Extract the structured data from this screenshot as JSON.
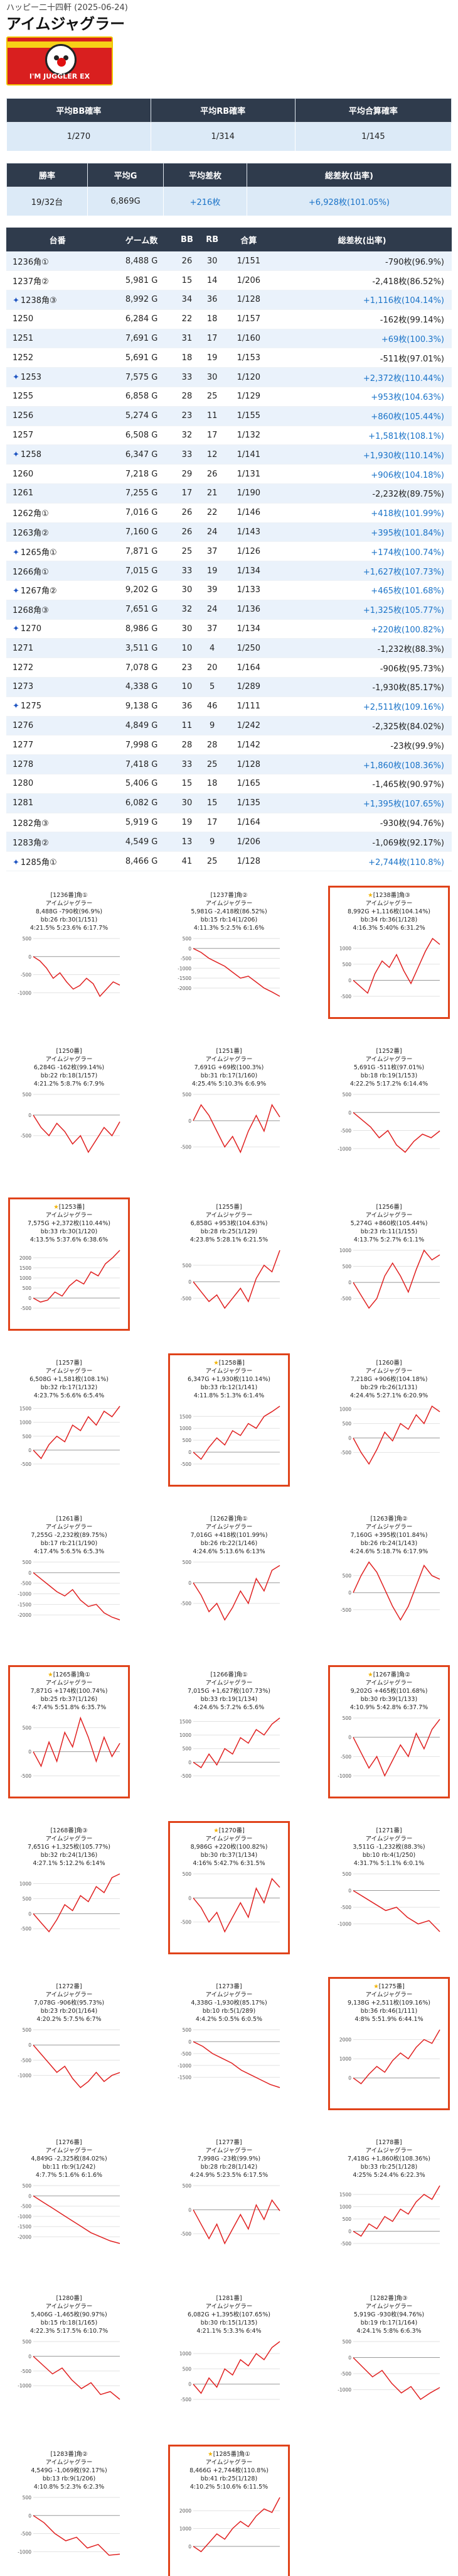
{
  "store": "ハッピー二十四軒 (2025-06-24)",
  "machine": "アイムジャグラー",
  "banner_text": "I'M JUGGLER EX",
  "summary1": {
    "headers": [
      "平均BB確率",
      "平均RB確率",
      "平均合算確率"
    ],
    "values": [
      "1/270",
      "1/314",
      "1/145"
    ]
  },
  "summary2": {
    "headers": [
      "勝率",
      "平均G",
      "平均差枚",
      "総差枚(出率)"
    ],
    "values": [
      "19/32台",
      "6,869G",
      "+216枚",
      "+6,928枚(101.05%)"
    ]
  },
  "units_header": [
    "台番",
    "ゲーム数",
    "BB",
    "RB",
    "合算",
    "総差枚(出率)"
  ],
  "units": [
    {
      "unit": "1236角①",
      "g": "8,488 G",
      "bb": "26",
      "rb": "30",
      "total": "1/151",
      "diff": "-790枚(96.9%)",
      "sp": false,
      "spark": [
        0,
        -120,
        -320,
        -600,
        -450,
        -700,
        -900,
        -800,
        -600,
        -750,
        -1100,
        -900,
        -700,
        -790
      ]
    },
    {
      "unit": "1237角②",
      "g": "5,981 G",
      "bb": "15",
      "rb": "14",
      "total": "1/206",
      "diff": "-2,418枚(86.52%)",
      "sp": false,
      "spark": [
        0,
        -200,
        -500,
        -700,
        -900,
        -1200,
        -1500,
        -1400,
        -1700,
        -2000,
        -2200,
        -2418
      ]
    },
    {
      "unit": "1238角③",
      "g": "8,992 G",
      "bb": "34",
      "rb": "36",
      "total": "1/128",
      "diff": "+1,116枚(104.14%)",
      "sp": true,
      "spark": [
        0,
        -200,
        -400,
        200,
        600,
        400,
        800,
        300,
        -100,
        400,
        900,
        1300,
        1116
      ]
    },
    {
      "unit": "1250",
      "g": "6,284 G",
      "bb": "22",
      "rb": "18",
      "total": "1/157",
      "diff": "-162枚(99.14%)",
      "sp": false,
      "spark": [
        0,
        -300,
        -500,
        -200,
        -400,
        -700,
        -500,
        -900,
        -600,
        -300,
        -500,
        -162
      ]
    },
    {
      "unit": "1251",
      "g": "7,691 G",
      "bb": "31",
      "rb": "17",
      "total": "1/160",
      "diff": "+69枚(100.3%)",
      "sp": false,
      "spark": [
        0,
        300,
        100,
        -200,
        -500,
        -300,
        -600,
        -200,
        100,
        -200,
        300,
        69
      ]
    },
    {
      "unit": "1252",
      "g": "5,691 G",
      "bb": "18",
      "rb": "19",
      "total": "1/153",
      "diff": "-511枚(97.01%)",
      "sp": false,
      "spark": [
        0,
        -200,
        -400,
        -700,
        -500,
        -900,
        -1100,
        -800,
        -600,
        -700,
        -511
      ]
    },
    {
      "unit": "1253",
      "g": "7,575 G",
      "bb": "33",
      "rb": "30",
      "total": "1/120",
      "diff": "+2,372枚(110.44%)",
      "sp": true,
      "spark": [
        0,
        -200,
        -100,
        300,
        100,
        600,
        900,
        700,
        1300,
        1100,
        1700,
        2000,
        2372
      ]
    },
    {
      "unit": "1255",
      "g": "6,858 G",
      "bb": "28",
      "rb": "25",
      "total": "1/129",
      "diff": "+953枚(104.63%)",
      "sp": false,
      "spark": [
        0,
        -300,
        -600,
        -400,
        -800,
        -500,
        -200,
        -600,
        100,
        500,
        300,
        953
      ]
    },
    {
      "unit": "1256",
      "g": "5,274 G",
      "bb": "23",
      "rb": "11",
      "total": "1/155",
      "diff": "+860枚(105.44%)",
      "sp": false,
      "spark": [
        0,
        -400,
        -800,
        -500,
        200,
        600,
        200,
        -300,
        400,
        1000,
        700,
        860
      ]
    },
    {
      "unit": "1257",
      "g": "6,508 G",
      "bb": "32",
      "rb": "17",
      "total": "1/132",
      "diff": "+1,581枚(108.1%)",
      "sp": false,
      "spark": [
        0,
        -300,
        200,
        500,
        300,
        900,
        700,
        1200,
        900,
        1400,
        1200,
        1581
      ]
    },
    {
      "unit": "1258",
      "g": "6,347 G",
      "bb": "33",
      "rb": "12",
      "total": "1/141",
      "diff": "+1,930枚(110.14%)",
      "sp": true,
      "spark": [
        0,
        -300,
        200,
        600,
        300,
        900,
        700,
        1200,
        1000,
        1500,
        1700,
        1930
      ]
    },
    {
      "unit": "1260",
      "g": "7,218 G",
      "bb": "29",
      "rb": "26",
      "total": "1/131",
      "diff": "+906枚(104.18%)",
      "sp": false,
      "spark": [
        0,
        -500,
        -900,
        -400,
        200,
        -100,
        500,
        300,
        800,
        500,
        1100,
        906
      ]
    },
    {
      "unit": "1261",
      "g": "7,255 G",
      "bb": "17",
      "rb": "21",
      "total": "1/190",
      "diff": "-2,232枚(89.75%)",
      "sp": false,
      "spark": [
        0,
        -300,
        -600,
        -900,
        -1100,
        -800,
        -1300,
        -1600,
        -1500,
        -1900,
        -2100,
        -2232
      ]
    },
    {
      "unit": "1262角①",
      "g": "7,016 G",
      "bb": "26",
      "rb": "22",
      "total": "1/146",
      "diff": "+418枚(101.99%)",
      "sp": false,
      "spark": [
        0,
        -300,
        -700,
        -500,
        -900,
        -600,
        -200,
        -500,
        100,
        -200,
        300,
        418
      ]
    },
    {
      "unit": "1263角②",
      "g": "7,160 G",
      "bb": "26",
      "rb": "24",
      "total": "1/143",
      "diff": "+395枚(101.84%)",
      "sp": false,
      "spark": [
        0,
        500,
        900,
        600,
        100,
        -400,
        -800,
        -400,
        200,
        800,
        500,
        395
      ]
    },
    {
      "unit": "1265角①",
      "g": "7,871 G",
      "bb": "25",
      "rb": "37",
      "total": "1/126",
      "diff": "+174枚(100.74%)",
      "sp": true,
      "spark": [
        0,
        -300,
        200,
        -200,
        400,
        100,
        700,
        300,
        -200,
        300,
        -100,
        174
      ]
    },
    {
      "unit": "1266角①",
      "g": "7,015 G",
      "bb": "33",
      "rb": "19",
      "total": "1/134",
      "diff": "+1,627枚(107.73%)",
      "sp": false,
      "spark": [
        0,
        -200,
        300,
        -100,
        500,
        300,
        900,
        700,
        1200,
        1000,
        1400,
        1627
      ]
    },
    {
      "unit": "1267角②",
      "g": "9,202 G",
      "bb": "30",
      "rb": "39",
      "total": "1/133",
      "diff": "+465枚(101.68%)",
      "sp": true,
      "spark": [
        0,
        -400,
        -800,
        -500,
        -1000,
        -600,
        -200,
        -500,
        100,
        -300,
        200,
        465
      ]
    },
    {
      "unit": "1268角③",
      "g": "7,651 G",
      "bb": "32",
      "rb": "24",
      "total": "1/136",
      "diff": "+1,325枚(105.77%)",
      "sp": false,
      "spark": [
        0,
        -300,
        -600,
        -200,
        300,
        100,
        600,
        400,
        900,
        700,
        1200,
        1325
      ]
    },
    {
      "unit": "1270",
      "g": "8,986 G",
      "bb": "30",
      "rb": "37",
      "total": "1/134",
      "diff": "+220枚(100.82%)",
      "sp": true,
      "spark": [
        0,
        -200,
        -500,
        -300,
        -700,
        -400,
        -100,
        -400,
        200,
        -100,
        400,
        220
      ]
    },
    {
      "unit": "1271",
      "g": "3,511 G",
      "bb": "10",
      "rb": "4",
      "total": "1/250",
      "diff": "-1,232枚(88.3%)",
      "sp": false,
      "spark": [
        0,
        -200,
        -400,
        -600,
        -500,
        -800,
        -1000,
        -900,
        -1232
      ]
    },
    {
      "unit": "1272",
      "g": "7,078 G",
      "bb": "23",
      "rb": "20",
      "total": "1/164",
      "diff": "-906枚(95.73%)",
      "sp": false,
      "spark": [
        0,
        -300,
        -600,
        -900,
        -700,
        -1100,
        -1400,
        -1200,
        -900,
        -1200,
        -1000,
        -906
      ]
    },
    {
      "unit": "1273",
      "g": "4,338 G",
      "bb": "10",
      "rb": "5",
      "total": "1/289",
      "diff": "-1,930枚(85.17%)",
      "sp": false,
      "spark": [
        0,
        -200,
        -500,
        -700,
        -900,
        -1200,
        -1400,
        -1600,
        -1800,
        -1930
      ]
    },
    {
      "unit": "1275",
      "g": "9,138 G",
      "bb": "36",
      "rb": "46",
      "total": "1/111",
      "diff": "+2,511枚(109.16%)",
      "sp": true,
      "spark": [
        0,
        -300,
        200,
        600,
        300,
        900,
        1300,
        1000,
        1600,
        2000,
        1800,
        2511
      ]
    },
    {
      "unit": "1276",
      "g": "4,849 G",
      "bb": "11",
      "rb": "9",
      "total": "1/242",
      "diff": "-2,325枚(84.02%)",
      "sp": false,
      "spark": [
        0,
        -300,
        -600,
        -900,
        -1200,
        -1500,
        -1800,
        -2000,
        -2200,
        -2325
      ]
    },
    {
      "unit": "1277",
      "g": "7,998 G",
      "bb": "28",
      "rb": "28",
      "total": "1/142",
      "diff": "-23枚(99.9%)",
      "sp": false,
      "spark": [
        0,
        -300,
        -600,
        -300,
        -700,
        -400,
        -100,
        -400,
        100,
        -200,
        200,
        -23
      ]
    },
    {
      "unit": "1278",
      "g": "7,418 G",
      "bb": "33",
      "rb": "25",
      "total": "1/128",
      "diff": "+1,860枚(108.36%)",
      "sp": false,
      "spark": [
        0,
        -200,
        300,
        100,
        600,
        400,
        900,
        700,
        1200,
        1500,
        1300,
        1860
      ]
    },
    {
      "unit": "1280",
      "g": "5,406 G",
      "bb": "15",
      "rb": "18",
      "total": "1/165",
      "diff": "-1,465枚(90.97%)",
      "sp": false,
      "spark": [
        0,
        -300,
        -600,
        -400,
        -800,
        -1100,
        -900,
        -1300,
        -1200,
        -1465
      ]
    },
    {
      "unit": "1281",
      "g": "6,082 G",
      "bb": "30",
      "rb": "15",
      "total": "1/135",
      "diff": "+1,395枚(107.65%)",
      "sp": false,
      "spark": [
        0,
        -300,
        200,
        -100,
        500,
        300,
        800,
        600,
        1000,
        800,
        1200,
        1395
      ]
    },
    {
      "unit": "1282角③",
      "g": "5,919 G",
      "bb": "19",
      "rb": "17",
      "total": "1/164",
      "diff": "-930枚(94.76%)",
      "sp": false,
      "spark": [
        0,
        -300,
        -600,
        -400,
        -800,
        -1100,
        -900,
        -1300,
        -1100,
        -930
      ]
    },
    {
      "unit": "1283角②",
      "g": "4,549 G",
      "bb": "13",
      "rb": "9",
      "total": "1/206",
      "diff": "-1,069枚(92.17%)",
      "sp": false,
      "spark": [
        0,
        -200,
        -500,
        -700,
        -600,
        -900,
        -800,
        -1100,
        -1069
      ]
    },
    {
      "unit": "1285角①",
      "g": "8,466 G",
      "bb": "41",
      "rb": "25",
      "total": "1/128",
      "diff": "+2,744枚(110.8%)",
      "sp": true,
      "spark": [
        0,
        -300,
        200,
        700,
        400,
        1000,
        1400,
        1100,
        1700,
        2100,
        1900,
        2744
      ]
    }
  ],
  "cards": [
    {
      "l1": "[1236番]角①",
      "l2": "アイムジャグラー",
      "l3": "8,488G -790枚(96.9%)",
      "l4": "bb:26 rb:30(1/151)",
      "l5": "4:21.5% 5:23.6% 6:17.7%",
      "hl": false,
      "star": false
    },
    {
      "l1": "[1237番]角②",
      "l2": "アイムジャグラー",
      "l3": "5,981G -2,418枚(86.52%)",
      "l4": "bb:15 rb:14(1/206)",
      "l5": "4:11.3% 5:2.5% 6:1.6%",
      "hl": false,
      "star": false
    },
    {
      "l1": "[1238番]角③",
      "l2": "アイムジャグラー",
      "l3": "8,992G +1,116枚(104.14%)",
      "l4": "bb:34 rb:36(1/128)",
      "l5": "4:16.3% 5:40% 6:31.2%",
      "hl": true,
      "star": true
    },
    {
      "l1": "[1250番]",
      "l2": "アイムジャグラー",
      "l3": "6,284G -162枚(99.14%)",
      "l4": "bb:22 rb:18(1/157)",
      "l5": "4:21.2% 5:8.7% 6:7.9%",
      "hl": false,
      "star": false
    },
    {
      "l1": "[1251番]",
      "l2": "アイムジャグラー",
      "l3": "7,691G +69枚(100.3%)",
      "l4": "bb:31 rb:17(1/160)",
      "l5": "4:25.4% 5:10.3% 6:6.9%",
      "hl": false,
      "star": false
    },
    {
      "l1": "[1252番]",
      "l2": "アイムジャグラー",
      "l3": "5,691G -511枚(97.01%)",
      "l4": "bb:18 rb:19(1/153)",
      "l5": "4:22.2% 5:17.2% 6:14.4%",
      "hl": false,
      "star": false
    },
    {
      "l1": "[1253番]",
      "l2": "アイムジャグラー",
      "l3": "7,575G +2,372枚(110.44%)",
      "l4": "bb:33 rb:30(1/120)",
      "l5": "4:13.5% 5:37.6% 6:38.6%",
      "hl": true,
      "star": true
    },
    {
      "l1": "[1255番]",
      "l2": "アイムジャグラー",
      "l3": "6,858G +953枚(104.63%)",
      "l4": "bb:28 rb:25(1/129)",
      "l5": "4:23.8% 5:28.1% 6:21.5%",
      "hl": false,
      "star": false
    },
    {
      "l1": "[1256番]",
      "l2": "アイムジャグラー",
      "l3": "5,274G +860枚(105.44%)",
      "l4": "bb:23 rb:11(1/155)",
      "l5": "4:13.7% 5:2.7% 6:1.1%",
      "hl": false,
      "star": false
    },
    {
      "l1": "[1257番]",
      "l2": "アイムジャグラー",
      "l3": "6,508G +1,581枚(108.1%)",
      "l4": "bb:32 rb:17(1/132)",
      "l5": "4:23.7% 5:6.6% 6:5.4%",
      "hl": false,
      "star": false
    },
    {
      "l1": "[1258番]",
      "l2": "アイムジャグラー",
      "l3": "6,347G +1,930枚(110.14%)",
      "l4": "bb:33 rb:12(1/141)",
      "l5": "4:11.8% 5:1.3% 6:1.4%",
      "hl": true,
      "star": true
    },
    {
      "l1": "[1260番]",
      "l2": "アイムジャグラー",
      "l3": "7,218G +906枚(104.18%)",
      "l4": "bb:29 rb:26(1/131)",
      "l5": "4:24.4% 5:27.1% 6:20.9%",
      "hl": false,
      "star": false
    },
    {
      "l1": "[1261番]",
      "l2": "アイムジャグラー",
      "l3": "7,255G -2,232枚(89.75%)",
      "l4": "bb:17 rb:21(1/190)",
      "l5": "4:17.4% 5:6.5% 6:5.3%",
      "hl": false,
      "star": false
    },
    {
      "l1": "[1262番]角①",
      "l2": "アイムジャグラー",
      "l3": "7,016G +418枚(101.99%)",
      "l4": "bb:26 rb:22(1/146)",
      "l5": "4:24.6% 5:13.6% 6:13%",
      "hl": false,
      "star": false
    },
    {
      "l1": "[1263番]角②",
      "l2": "アイムジャグラー",
      "l3": "7,160G +395枚(101.84%)",
      "l4": "bb:26 rb:24(1/143)",
      "l5": "4:24.6% 5:18.7% 6:17.9%",
      "hl": false,
      "star": false
    },
    {
      "l1": "[1265番]角①",
      "l2": "アイムジャグラー",
      "l3": "7,871G +174枚(100.74%)",
      "l4": "bb:25 rb:37(1/126)",
      "l5": "4:7.4% 5:51.8% 6:35.7%",
      "hl": true,
      "star": true
    },
    {
      "l1": "[1266番]角①",
      "l2": "アイムジャグラー",
      "l3": "7,015G +1,627枚(107.73%)",
      "l4": "bb:33 rb:19(1/134)",
      "l5": "4:24.6% 5:7.2% 6:5.6%",
      "hl": false,
      "star": false
    },
    {
      "l1": "[1267番]角②",
      "l2": "アイムジャグラー",
      "l3": "9,202G +465枚(101.68%)",
      "l4": "bb:30 rb:39(1/133)",
      "l5": "4:10.9% 5:42.8% 6:37.7%",
      "hl": true,
      "star": true
    },
    {
      "l1": "[1268番]角③",
      "l2": "アイムジャグラー",
      "l3": "7,651G +1,325枚(105.77%)",
      "l4": "bb:32 rb:24(1/136)",
      "l5": "4:27.1% 5:12.2% 6:14%",
      "hl": false,
      "star": false
    },
    {
      "l1": "[1270番]",
      "l2": "アイムジャグラー",
      "l3": "8,986G +220枚(100.82%)",
      "l4": "bb:30 rb:37(1/134)",
      "l5": "4:16% 5:42.7% 6:31.5%",
      "hl": true,
      "star": true
    },
    {
      "l1": "[1271番]",
      "l2": "アイムジャグラー",
      "l3": "3,511G -1,232枚(88.3%)",
      "l4": "bb:10 rb:4(1/250)",
      "l5": "4:31.7% 5:1.1% 6:0.1%",
      "hl": false,
      "star": false
    },
    {
      "l1": "[1272番]",
      "l2": "アイムジャグラー",
      "l3": "7,078G -906枚(95.73%)",
      "l4": "bb:23 rb:20(1/164)",
      "l5": "4:20.2% 5:7.5% 6:7%",
      "hl": false,
      "star": false
    },
    {
      "l1": "[1273番]",
      "l2": "アイムジャグラー",
      "l3": "4,338G -1,930枚(85.17%)",
      "l4": "bb:10 rb:5(1/289)",
      "l5": "4:4.2% 5:0.5% 6:0.5%",
      "hl": false,
      "star": false
    },
    {
      "l1": "[1275番]",
      "l2": "アイムジャグラー",
      "l3": "9,138G +2,511枚(109.16%)",
      "l4": "bb:36 rb:46(1/111)",
      "l5": "4:8% 5:51.9% 6:44.1%",
      "hl": true,
      "star": true
    },
    {
      "l1": "[1276番]",
      "l2": "アイムジャグラー",
      "l3": "4,849G -2,325枚(84.02%)",
      "l4": "bb:11 rb:9(1/242)",
      "l5": "4:7.7% 5:1.6% 6:1.6%",
      "hl": false,
      "star": false
    },
    {
      "l1": "[1277番]",
      "l2": "アイムジャグラー",
      "l3": "7,998G -23枚(99.9%)",
      "l4": "bb:28 rb:28(1/142)",
      "l5": "4:24.9% 5:23.5% 6:17.5%",
      "hl": false,
      "star": false
    },
    {
      "l1": "[1278番]",
      "l2": "アイムジャグラー",
      "l3": "7,418G +1,860枚(108.36%)",
      "l4": "bb:33 rb:25(1/128)",
      "l5": "4:25% 5:24.4% 6:22.3%",
      "hl": false,
      "star": false
    },
    {
      "l1": "[1280番]",
      "l2": "アイムジャグラー",
      "l3": "5,406G -1,465枚(90.97%)",
      "l4": "bb:15 rb:18(1/165)",
      "l5": "4:22.3% 5:17.5% 6:10.7%",
      "hl": false,
      "star": false
    },
    {
      "l1": "[1281番]",
      "l2": "アイムジャグラー",
      "l3": "6,082G +1,395枚(107.65%)",
      "l4": "bb:30 rb:15(1/135)",
      "l5": "4:21.1% 5:3.3% 6:4%",
      "hl": false,
      "star": false
    },
    {
      "l1": "[1282番]角③",
      "l2": "アイムジャグラー",
      "l3": "5,919G -930枚(94.76%)",
      "l4": "bb:19 rb:17(1/164)",
      "l5": "4:24.1% 5:8% 6:6.3%",
      "hl": false,
      "star": false
    },
    {
      "l1": "[1283番]角②",
      "l2": "アイムジャグラー",
      "l3": "4,549G -1,069枚(92.17%)",
      "l4": "bb:13 rb:9(1/206)",
      "l5": "4:10.8% 5:2.3% 6:2.3%",
      "hl": false,
      "star": false
    },
    {
      "l1": "[1285番]角①",
      "l2": "アイムジャグラー",
      "l3": "8,466G +2,744枚(110.8%)",
      "l4": "bb:41 rb:25(1/128)",
      "l5": "4:10.2% 5:10.6% 6:11.5%",
      "hl": true,
      "star": true
    }
  ],
  "colors": {
    "header_bg": "#2f3b4c",
    "row_blue": "#eaf2fb",
    "accent_blue": "#1a73c8",
    "line_red": "#e02020",
    "highlight": "#e0431a"
  },
  "icons": {
    "special_unit": "sparkle-icon",
    "star": "star-icon"
  }
}
